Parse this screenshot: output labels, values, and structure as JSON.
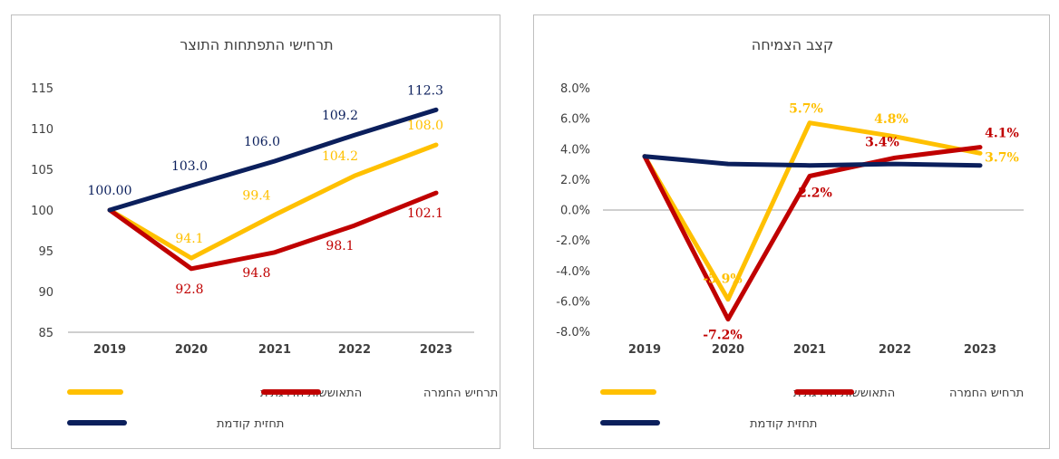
{
  "colors": {
    "gradual": "#FFC000",
    "severe": "#C00000",
    "previous": "#0B1F5C",
    "axis": "#bfbfbf",
    "text": "#404040"
  },
  "chart_data": [
    {
      "type": "line",
      "title": "תרחישי התפתחות התוצר",
      "categories": [
        "2019",
        "2020",
        "2021",
        "2022",
        "2023"
      ],
      "ylim": [
        85,
        115
      ],
      "yticks": [
        "115",
        "110",
        "105",
        "100",
        "95",
        "90",
        "85"
      ],
      "ytick_values": [
        115,
        110,
        105,
        100,
        95,
        90,
        85
      ],
      "grid": false,
      "legend_position": "bottom",
      "series": [
        {
          "key": "gradual",
          "name": "התאוששות הדרגתית",
          "values": [
            100,
            94.1,
            99.4,
            104.2,
            108.0
          ],
          "labels": [
            "",
            "94.1",
            "99.4",
            "104.2",
            "108.0"
          ]
        },
        {
          "key": "severe",
          "name": "תרחיש החמרה",
          "values": [
            100,
            92.8,
            94.8,
            98.1,
            102.1
          ],
          "labels": [
            "",
            "92.8",
            "94.8",
            "98.1",
            "102.1"
          ]
        },
        {
          "key": "previous",
          "name": "תחזית קודמת",
          "values": [
            100,
            103.0,
            106.0,
            109.2,
            112.3
          ],
          "labels": [
            "100.00",
            "103.0",
            "106.0",
            "109.2",
            "112.3"
          ]
        }
      ]
    },
    {
      "type": "line",
      "title": "קצב הצמיחה",
      "categories": [
        "2019",
        "2020",
        "2021",
        "2022",
        "2023"
      ],
      "ylim": [
        -8,
        8
      ],
      "yticks": [
        "8.0%",
        "6.0%",
        "4.0%",
        "2.0%",
        "0.0%",
        "-2.0%",
        "-4.0%",
        "-6.0%",
        "-8.0%"
      ],
      "ytick_values": [
        8,
        6,
        4,
        2,
        0,
        -2,
        -4,
        -6,
        -8
      ],
      "grid": false,
      "legend_position": "bottom",
      "series": [
        {
          "key": "gradual",
          "name": "התאוששות הדרגתית",
          "values": [
            3.5,
            -5.9,
            5.7,
            4.8,
            3.7
          ],
          "labels": [
            "",
            "-5.9%",
            "5.7%",
            "4.8%",
            "3.7%"
          ]
        },
        {
          "key": "severe",
          "name": "תרחיש החמרה",
          "values": [
            3.5,
            -7.2,
            2.2,
            3.4,
            4.1
          ],
          "labels": [
            "",
            "-7.2%",
            "2.2%",
            "3.4%",
            "4.1%"
          ]
        },
        {
          "key": "previous",
          "name": "תחזית קודמת",
          "values": [
            3.5,
            3.0,
            2.9,
            3.0,
            2.9
          ],
          "labels": [
            "",
            "",
            "",
            "",
            ""
          ]
        }
      ]
    }
  ]
}
